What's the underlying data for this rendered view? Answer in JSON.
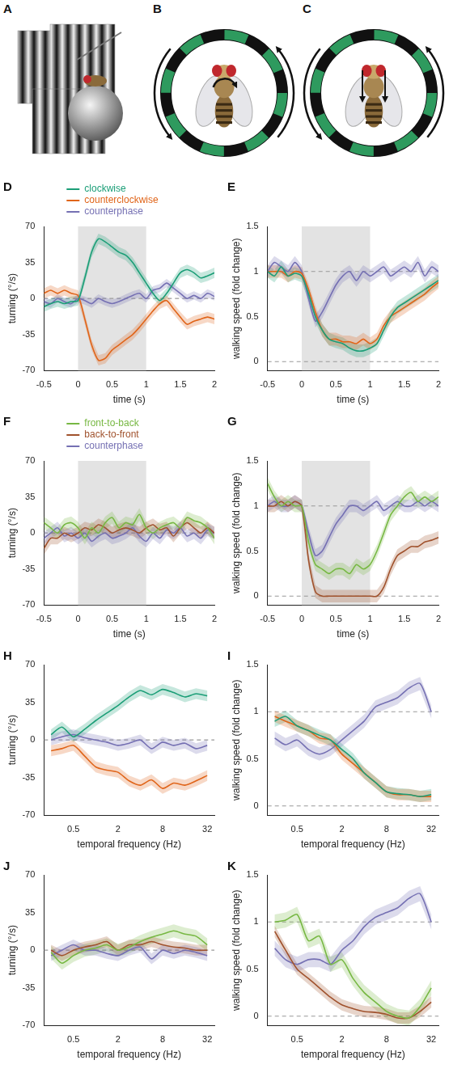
{
  "illustrations": [
    {
      "panel": "A"
    },
    {
      "panel": "B"
    },
    {
      "panel": "C"
    }
  ],
  "chart_data": [
    {
      "panel": "D",
      "type": "line",
      "x_label": "time (s)",
      "y_label": "turning (°/s)",
      "legend": "top",
      "grid": false,
      "x": [
        -0.5,
        -0.4,
        -0.3,
        -0.2,
        -0.1,
        0,
        0.1,
        0.2,
        0.3,
        0.4,
        0.5,
        0.6,
        0.7,
        0.8,
        0.9,
        1.0,
        1.1,
        1.2,
        1.3,
        1.4,
        1.5,
        1.6,
        1.7,
        1.8,
        1.9,
        2.0
      ],
      "xlim": [
        -0.5,
        2
      ],
      "xticks": [
        -0.5,
        0,
        0.5,
        1,
        1.5,
        2
      ],
      "ylim": [
        -70,
        70
      ],
      "yticks": [
        -70,
        -35,
        0,
        35,
        70
      ],
      "stimulus": [
        0,
        1
      ],
      "hlines": [
        0
      ],
      "series": [
        {
          "name": "clockwise",
          "color": "#1b9e77",
          "error": 5,
          "values": [
            -8,
            -5,
            -3,
            -5,
            -3,
            -2,
            20,
            45,
            58,
            55,
            50,
            45,
            42,
            35,
            25,
            15,
            5,
            -2,
            5,
            15,
            25,
            28,
            25,
            20,
            22,
            25
          ]
        },
        {
          "name": "counterclockwise",
          "color": "#e0651a",
          "error": 5,
          "values": [
            5,
            8,
            5,
            8,
            5,
            3,
            -20,
            -45,
            -60,
            -58,
            -50,
            -45,
            -40,
            -35,
            -28,
            -20,
            -12,
            -5,
            -2,
            -10,
            -18,
            -25,
            -22,
            -20,
            -18,
            -20
          ]
        },
        {
          "name": "counterphase",
          "color": "#7570b3",
          "error": 4,
          "values": [
            -3,
            -5,
            0,
            -3,
            -5,
            0,
            -2,
            -5,
            0,
            -3,
            -5,
            -3,
            0,
            3,
            5,
            0,
            8,
            10,
            15,
            10,
            5,
            0,
            3,
            0,
            5,
            2
          ]
        }
      ]
    },
    {
      "panel": "E",
      "type": "line",
      "x_label": "time (s)",
      "y_label": "walking speed (fold change)",
      "grid": false,
      "x": [
        -0.5,
        -0.4,
        -0.3,
        -0.2,
        -0.1,
        0,
        0.1,
        0.2,
        0.3,
        0.4,
        0.5,
        0.6,
        0.7,
        0.8,
        0.9,
        1.0,
        1.1,
        1.2,
        1.3,
        1.4,
        1.5,
        1.6,
        1.7,
        1.8,
        1.9,
        2.0
      ],
      "xlim": [
        -0.5,
        2
      ],
      "xticks": [
        -0.5,
        0,
        0.5,
        1,
        1.5,
        2
      ],
      "ylim": [
        -0.1,
        1.5
      ],
      "yticks": [
        0,
        0.5,
        1,
        1.5
      ],
      "stimulus": [
        0,
        1
      ],
      "hlines": [
        0,
        1
      ],
      "series": [
        {
          "name": "clockwise",
          "color": "#1b9e77",
          "error": 0.07,
          "values": [
            1,
            0.95,
            1.05,
            0.95,
            0.98,
            0.95,
            0.75,
            0.5,
            0.35,
            0.25,
            0.22,
            0.2,
            0.15,
            0.12,
            0.12,
            0.15,
            0.2,
            0.35,
            0.5,
            0.6,
            0.65,
            0.7,
            0.75,
            0.8,
            0.85,
            0.9
          ]
        },
        {
          "name": "counterclockwise",
          "color": "#e0651a",
          "error": 0.07,
          "values": [
            1,
            1,
            1,
            0.95,
            1,
            0.98,
            0.8,
            0.55,
            0.35,
            0.25,
            0.25,
            0.22,
            0.22,
            0.2,
            0.25,
            0.2,
            0.25,
            0.4,
            0.5,
            0.55,
            0.6,
            0.65,
            0.7,
            0.75,
            0.82,
            0.88
          ]
        },
        {
          "name": "counterphase",
          "color": "#7570b3",
          "error": 0.07,
          "values": [
            1,
            1.1,
            1.05,
            1,
            1.1,
            1,
            0.7,
            0.45,
            0.55,
            0.7,
            0.85,
            0.95,
            1,
            0.9,
            1,
            0.95,
            1,
            1.05,
            0.95,
            1,
            1.05,
            1,
            1.1,
            0.95,
            1.05,
            1
          ]
        }
      ]
    },
    {
      "panel": "F",
      "type": "line",
      "x_label": "time (s)",
      "y_label": "turning (°/s)",
      "legend": "top",
      "grid": false,
      "x": [
        -0.5,
        -0.4,
        -0.3,
        -0.2,
        -0.1,
        0,
        0.1,
        0.2,
        0.3,
        0.4,
        0.5,
        0.6,
        0.7,
        0.8,
        0.9,
        1.0,
        1.1,
        1.2,
        1.3,
        1.4,
        1.5,
        1.6,
        1.7,
        1.8,
        1.9,
        2.0
      ],
      "xlim": [
        -0.5,
        2
      ],
      "xticks": [
        -0.5,
        0,
        0.5,
        1,
        1.5,
        2
      ],
      "ylim": [
        -70,
        70
      ],
      "yticks": [
        -70,
        -35,
        0,
        35,
        70
      ],
      "stimulus": [
        0,
        1
      ],
      "hlines": [
        0
      ],
      "series": [
        {
          "name": "front-to-back",
          "color": "#77b843",
          "error": 6,
          "values": [
            10,
            5,
            0,
            8,
            10,
            5,
            -5,
            5,
            0,
            10,
            15,
            5,
            10,
            8,
            18,
            5,
            0,
            5,
            8,
            10,
            5,
            15,
            12,
            10,
            5,
            -5
          ]
        },
        {
          "name": "back-to-front",
          "color": "#a0522d",
          "error": 6,
          "values": [
            -15,
            -5,
            -5,
            0,
            -3,
            0,
            5,
            3,
            8,
            5,
            0,
            3,
            5,
            3,
            0,
            5,
            8,
            3,
            5,
            -3,
            5,
            10,
            5,
            0,
            5,
            0
          ]
        },
        {
          "name": "counterphase",
          "color": "#7570b3",
          "error": 6,
          "values": [
            -5,
            0,
            5,
            -3,
            0,
            -5,
            0,
            -8,
            -3,
            0,
            -5,
            -3,
            0,
            5,
            -3,
            -8,
            0,
            -5,
            3,
            0,
            5,
            -3,
            0,
            -5,
            3,
            0
          ]
        }
      ]
    },
    {
      "panel": "G",
      "type": "line",
      "x_label": "time (s)",
      "y_label": "walking speed (fold change)",
      "grid": false,
      "x": [
        -0.5,
        -0.4,
        -0.3,
        -0.2,
        -0.1,
        0,
        0.1,
        0.2,
        0.3,
        0.4,
        0.5,
        0.6,
        0.7,
        0.8,
        0.9,
        1.0,
        1.1,
        1.2,
        1.3,
        1.4,
        1.5,
        1.6,
        1.7,
        1.8,
        1.9,
        2.0
      ],
      "xlim": [
        -0.5,
        2
      ],
      "xticks": [
        -0.5,
        0,
        0.5,
        1,
        1.5,
        2
      ],
      "ylim": [
        -0.1,
        1.5
      ],
      "yticks": [
        0,
        0.5,
        1,
        1.5
      ],
      "stimulus": [
        0,
        1
      ],
      "hlines": [
        0,
        1
      ],
      "series": [
        {
          "name": "front-to-back",
          "color": "#77b843",
          "error": 0.07,
          "values": [
            1.25,
            1.1,
            1,
            1.05,
            1,
            1,
            0.6,
            0.35,
            0.3,
            0.25,
            0.3,
            0.3,
            0.25,
            0.35,
            0.3,
            0.35,
            0.5,
            0.7,
            0.9,
            1,
            1.1,
            1.15,
            1.05,
            1.1,
            1.05,
            1.1
          ]
        },
        {
          "name": "back-to-front",
          "color": "#a0522d",
          "error": 0.07,
          "values": [
            1,
            1,
            1.05,
            1,
            1.05,
            1,
            0.4,
            0.05,
            0,
            0,
            0,
            0,
            0,
            0,
            0,
            0,
            0,
            0.1,
            0.3,
            0.45,
            0.5,
            0.55,
            0.55,
            0.6,
            0.62,
            0.65
          ]
        },
        {
          "name": "counterphase",
          "color": "#7570b3",
          "error": 0.07,
          "values": [
            1,
            1.05,
            1,
            1,
            1.05,
            1,
            0.7,
            0.45,
            0.5,
            0.65,
            0.8,
            0.9,
            1,
            1,
            0.95,
            1,
            1.05,
            0.95,
            1,
            1.05,
            1,
            1,
            1.05,
            1,
            1.05,
            1
          ]
        }
      ]
    },
    {
      "panel": "H",
      "type": "line",
      "log": "x",
      "x_label": "temporal frequency (Hz)",
      "y_label": "turning (°/s)",
      "grid": false,
      "x": [
        0.25,
        0.35,
        0.5,
        0.71,
        1,
        1.41,
        2,
        2.83,
        4,
        5.66,
        8,
        11.3,
        16,
        22.6,
        32
      ],
      "xlim": [
        0.2,
        40
      ],
      "xticks": [
        0.5,
        2,
        8,
        32
      ],
      "ylim": [
        -70,
        70
      ],
      "yticks": [
        -70,
        -35,
        0,
        35,
        70
      ],
      "hlines": [
        0
      ],
      "series": [
        {
          "name": "clockwise",
          "color": "#1b9e77",
          "error": 5,
          "values": [
            5,
            12,
            3,
            10,
            18,
            25,
            32,
            40,
            46,
            42,
            47,
            44,
            40,
            43,
            41
          ]
        },
        {
          "name": "counterclockwise",
          "color": "#e0651a",
          "error": 5,
          "values": [
            -10,
            -8,
            -5,
            -15,
            -25,
            -28,
            -30,
            -38,
            -42,
            -37,
            -45,
            -40,
            -42,
            -38,
            -33
          ]
        },
        {
          "name": "counterphase",
          "color": "#7570b3",
          "error": 5,
          "values": [
            0,
            3,
            5,
            2,
            0,
            -2,
            -5,
            -3,
            0,
            -8,
            -2,
            -5,
            -3,
            -8,
            -5
          ]
        }
      ]
    },
    {
      "panel": "I",
      "type": "line",
      "log": "x",
      "x_label": "temporal frequency (Hz)",
      "y_label": "walking speed (fold change)",
      "grid": false,
      "x": [
        0.25,
        0.35,
        0.5,
        0.71,
        1,
        1.41,
        2,
        2.83,
        4,
        5.66,
        8,
        11.3,
        16,
        22.6,
        32
      ],
      "xlim": [
        0.2,
        40
      ],
      "xticks": [
        0.5,
        2,
        8,
        32
      ],
      "ylim": [
        -0.1,
        1.5
      ],
      "yticks": [
        0,
        0.5,
        1,
        1.5
      ],
      "hlines": [
        0,
        1
      ],
      "series": [
        {
          "name": "clockwise",
          "color": "#1b9e77",
          "error": 0.06,
          "values": [
            0.9,
            0.95,
            0.85,
            0.8,
            0.75,
            0.7,
            0.6,
            0.5,
            0.35,
            0.25,
            0.15,
            0.13,
            0.12,
            0.1,
            0.12
          ]
        },
        {
          "name": "counterclockwise",
          "color": "#e0651a",
          "error": 0.06,
          "values": [
            0.95,
            0.9,
            0.85,
            0.8,
            0.72,
            0.7,
            0.55,
            0.45,
            0.35,
            0.25,
            0.15,
            0.12,
            0.12,
            0.1,
            0.1
          ]
        },
        {
          "name": "counterphase",
          "color": "#7570b3",
          "error": 0.07,
          "values": [
            0.72,
            0.65,
            0.7,
            0.6,
            0.55,
            0.6,
            0.7,
            0.8,
            0.9,
            1.05,
            1.1,
            1.15,
            1.25,
            1.3,
            1.0
          ]
        }
      ]
    },
    {
      "panel": "J",
      "type": "line",
      "log": "x",
      "x_label": "temporal frequency (Hz)",
      "y_label": "turning (°/s)",
      "grid": false,
      "x": [
        0.25,
        0.35,
        0.5,
        0.71,
        1,
        1.41,
        2,
        2.83,
        4,
        5.66,
        8,
        11.3,
        16,
        22.6,
        32
      ],
      "xlim": [
        0.2,
        40
      ],
      "xticks": [
        0.5,
        2,
        8,
        32
      ],
      "ylim": [
        -70,
        70
      ],
      "yticks": [
        -70,
        -35,
        0,
        35,
        70
      ],
      "hlines": [
        0
      ],
      "series": [
        {
          "name": "front-to-back",
          "color": "#77b843",
          "error": 6,
          "values": [
            -2,
            -12,
            -5,
            0,
            2,
            5,
            0,
            3,
            8,
            12,
            15,
            18,
            15,
            13,
            5
          ]
        },
        {
          "name": "back-to-front",
          "color": "#a0522d",
          "error": 5,
          "values": [
            0,
            -5,
            0,
            3,
            5,
            8,
            0,
            5,
            5,
            8,
            5,
            3,
            2,
            0,
            0
          ]
        },
        {
          "name": "counterphase",
          "color": "#7570b3",
          "error": 5,
          "values": [
            -5,
            0,
            5,
            0,
            0,
            -3,
            -5,
            0,
            3,
            -8,
            0,
            -3,
            0,
            -2,
            -5
          ]
        }
      ]
    },
    {
      "panel": "K",
      "type": "line",
      "log": "x",
      "x_label": "temporal frequency (Hz)",
      "y_label": "walking speed (fold change)",
      "grid": false,
      "x": [
        0.25,
        0.35,
        0.5,
        0.71,
        1,
        1.41,
        2,
        2.83,
        4,
        5.66,
        8,
        11.3,
        16,
        22.6,
        32
      ],
      "xlim": [
        0.2,
        40
      ],
      "xticks": [
        0.5,
        2,
        8,
        32
      ],
      "ylim": [
        -0.1,
        1.5
      ],
      "yticks": [
        0,
        0.5,
        1,
        1.5
      ],
      "hlines": [
        0,
        1
      ],
      "series": [
        {
          "name": "front-to-back",
          "color": "#77b843",
          "error": 0.08,
          "values": [
            1.0,
            1.02,
            1.08,
            0.8,
            0.85,
            0.55,
            0.6,
            0.4,
            0.25,
            0.15,
            0.05,
            0,
            -0.02,
            0.1,
            0.3
          ]
        },
        {
          "name": "back-to-front",
          "color": "#a0522d",
          "error": 0.06,
          "values": [
            0.9,
            0.7,
            0.5,
            0.4,
            0.3,
            0.2,
            0.12,
            0.08,
            0.05,
            0.04,
            0.02,
            -0.02,
            -0.02,
            0.05,
            0.15
          ]
        },
        {
          "name": "counterphase",
          "color": "#7570b3",
          "error": 0.08,
          "values": [
            0.72,
            0.6,
            0.55,
            0.6,
            0.6,
            0.55,
            0.7,
            0.8,
            0.95,
            1.05,
            1.1,
            1.15,
            1.25,
            1.3,
            1.0
          ]
        }
      ]
    }
  ]
}
